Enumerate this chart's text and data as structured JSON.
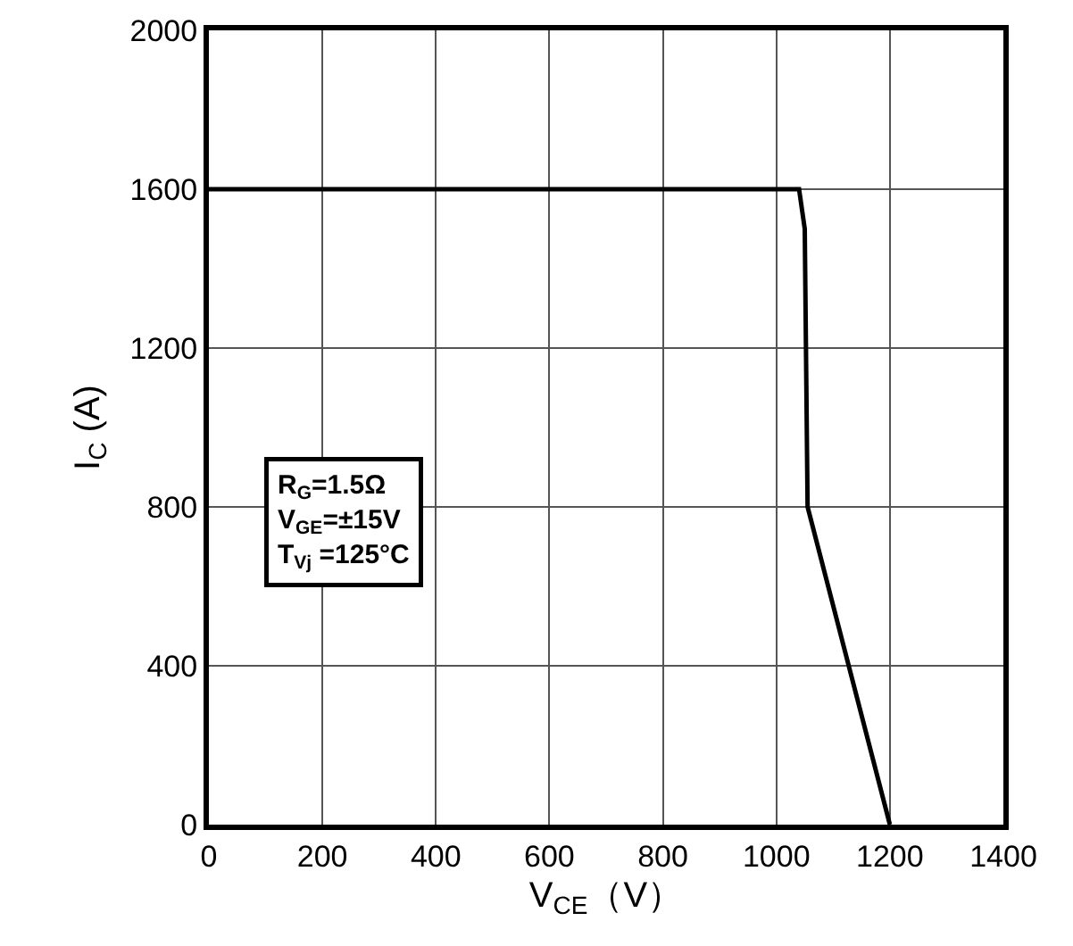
{
  "chart_data": {
    "type": "line",
    "xlabel": "V$_{CE}$（V）",
    "ylabel": "I$_{C}$ (A)",
    "x": [
      0,
      1040,
      1050,
      1055,
      1200
    ],
    "series": [
      {
        "color": "#000000",
        "values": [
          1600,
          1600,
          1500,
          800,
          0
        ]
      }
    ],
    "xlim": [
      0,
      1400
    ],
    "xticks": [
      0,
      200,
      400,
      600,
      800,
      1000,
      1200,
      1400
    ],
    "ylim": [
      0,
      2000
    ],
    "yticks": [
      0,
      400,
      800,
      1200,
      1600,
      2000
    ],
    "grid": true,
    "marker": "none",
    "line_style": "solid",
    "annotations": [
      "R$_{G}$=1.5Ω",
      "V$_{GE}$=±15V",
      "T$_{Vj}$ =125°C"
    ]
  }
}
